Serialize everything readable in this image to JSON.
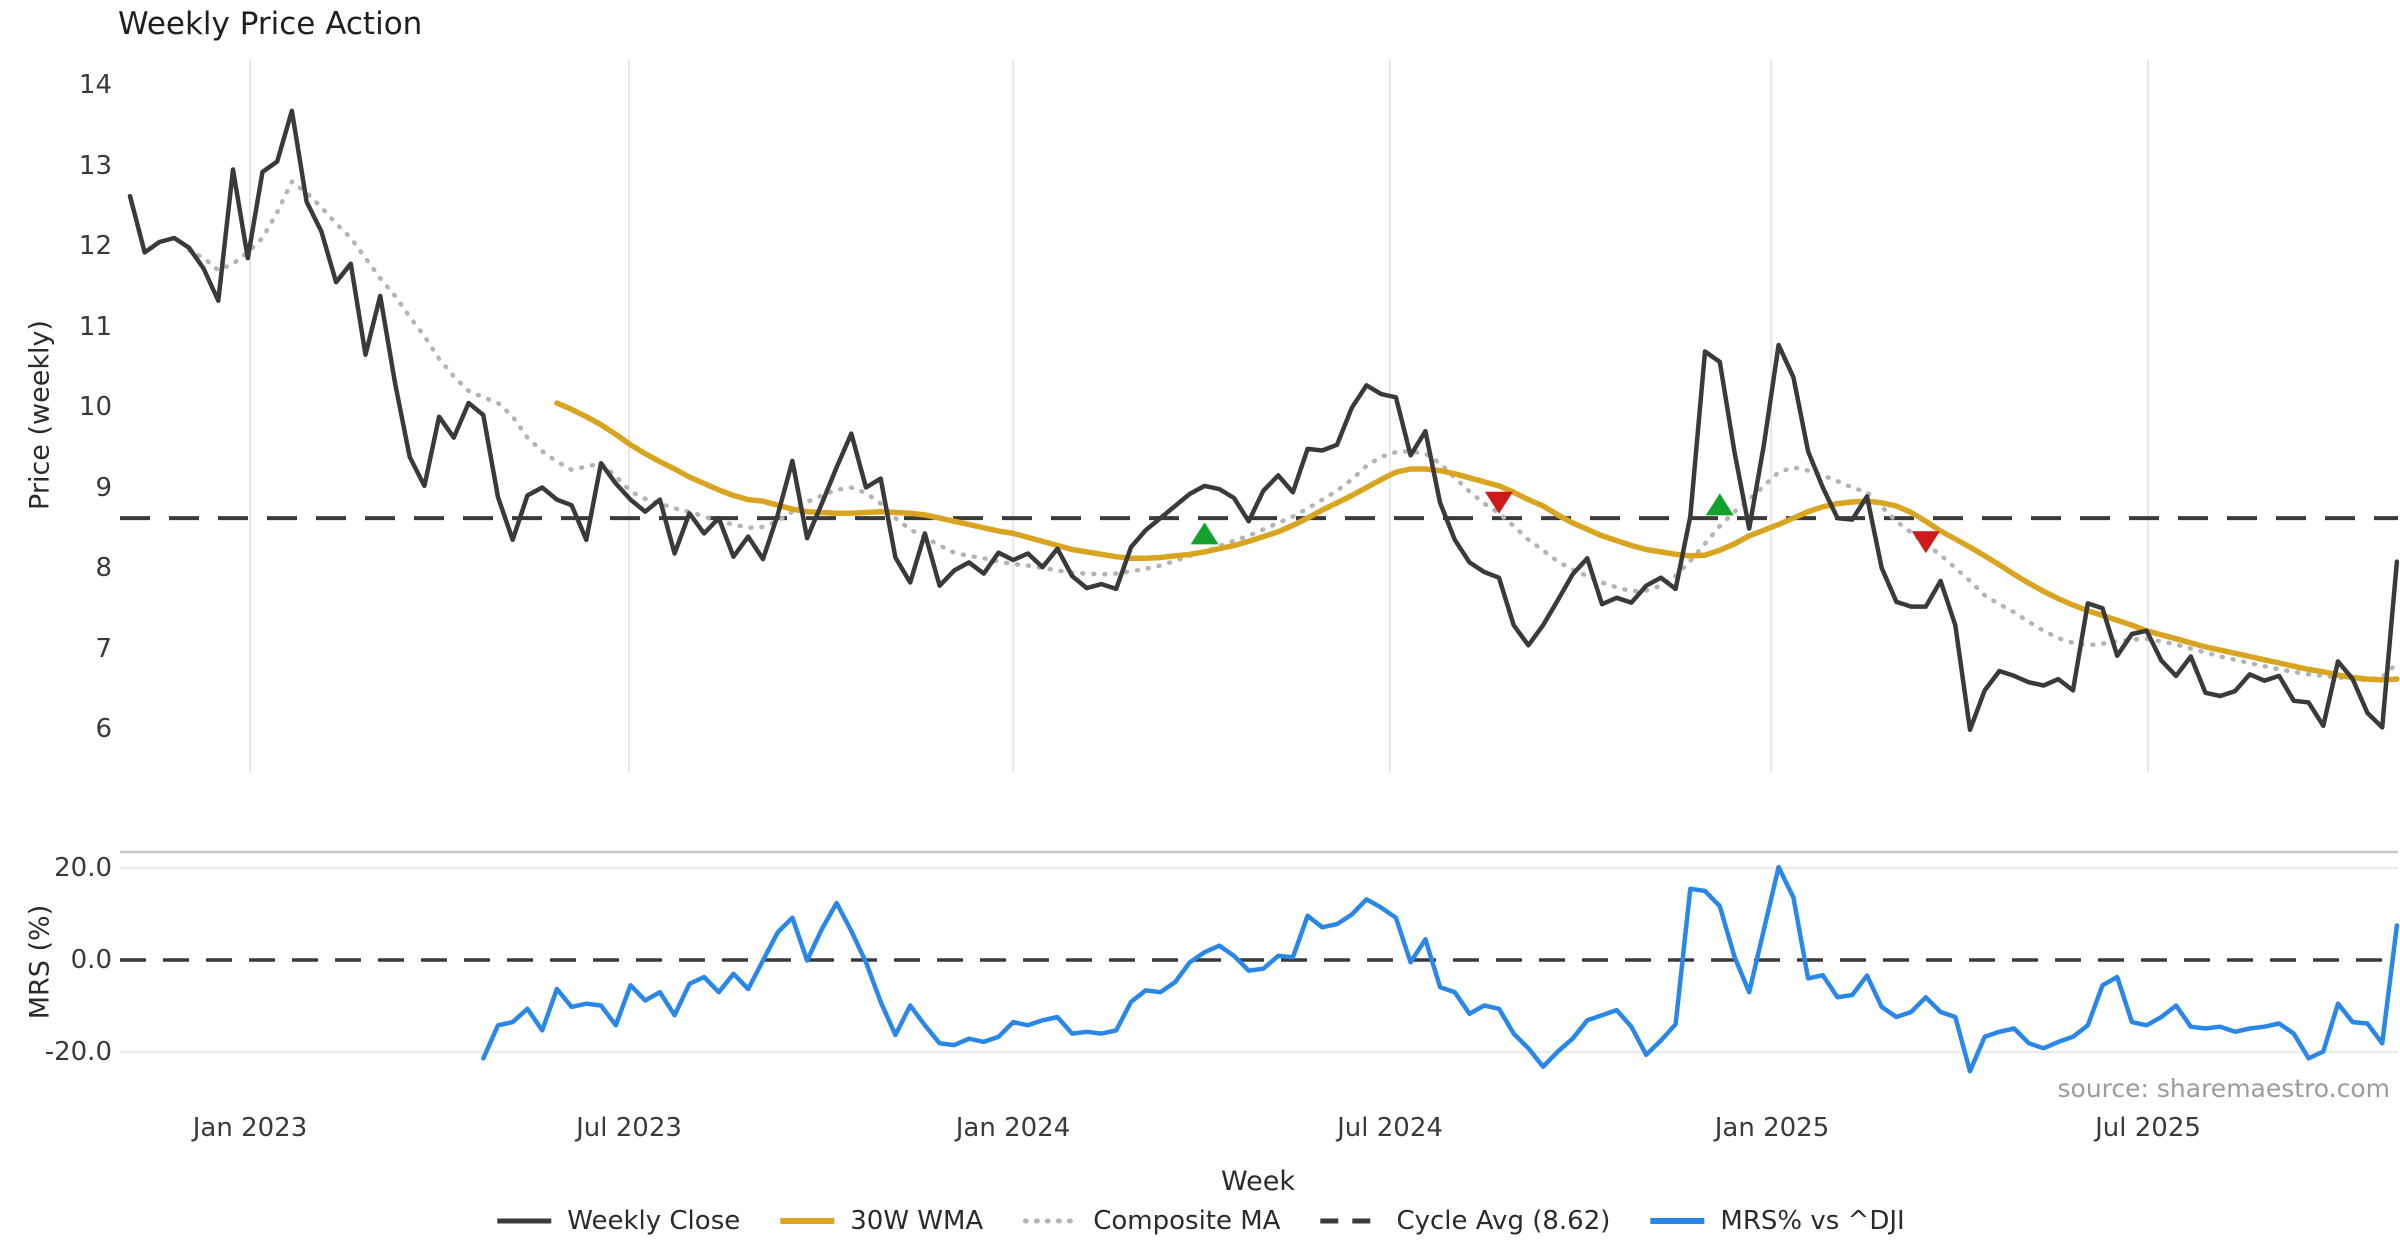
{
  "title": "Weekly Price Action",
  "watermark": "source: sharemaestro.com",
  "colors": {
    "close": "#3a3a3a",
    "wma": "#d9a520",
    "composite": "#b4b4b4",
    "dashed": "#3a3a3a",
    "mrs": "#2a87ea",
    "buy": "#14a02c",
    "sell": "#cd1a1a",
    "grid": "#e8e8e8",
    "panel_border": "#c9c9c9"
  },
  "x_axis": {
    "label": "Week",
    "ticks": [
      {
        "week": 8.15,
        "label": "Jan 2023"
      },
      {
        "week": 33.9,
        "label": "Jul 2023"
      },
      {
        "week": 60.0,
        "label": "Jan 2024"
      },
      {
        "week": 85.6,
        "label": "Jul 2024"
      },
      {
        "week": 111.5,
        "label": "Jan 2025"
      },
      {
        "week": 137.1,
        "label": "Jul 2025"
      }
    ]
  },
  "legend": [
    {
      "label": "Weekly Close",
      "swatch": "solid-dark"
    },
    {
      "label": "30W WMA",
      "swatch": "solid-gold"
    },
    {
      "label": "Composite MA",
      "swatch": "dotted-gray"
    },
    {
      "label": "Cycle Avg (8.62)",
      "swatch": "dashed-dark"
    },
    {
      "label": "MRS% vs ^DJI",
      "swatch": "solid-blue"
    }
  ],
  "chart_data": [
    {
      "panel": "price",
      "type": "line",
      "ylabel": "Price (weekly)",
      "yticks": [
        "14",
        "13",
        "12",
        "11",
        "10",
        "9",
        "8",
        "7",
        "6"
      ],
      "ytick_values": [
        14,
        13,
        12,
        11,
        10,
        9,
        8,
        7,
        6
      ],
      "ylim": [
        5.45,
        14.31
      ],
      "grid": "vertical-only",
      "cycle_avg": 8.62,
      "signals": [
        {
          "type": "buy",
          "week": 73,
          "price": 8.43
        },
        {
          "type": "sell",
          "week": 93,
          "price": 8.81
        },
        {
          "type": "buy",
          "week": 108,
          "price": 8.79
        },
        {
          "type": "sell",
          "week": 122,
          "price": 8.32
        }
      ],
      "series": [
        {
          "name": "Composite MA",
          "key": "composite",
          "start_week": 4,
          "values": [
            11.95,
            11.85,
            11.7,
            11.78,
            11.92,
            12.1,
            12.42,
            12.8,
            12.66,
            12.48,
            12.28,
            12.1,
            11.85,
            11.6,
            11.38,
            11.12,
            10.88,
            10.6,
            10.38,
            10.2,
            10.12,
            10.05,
            9.88,
            9.62,
            9.45,
            9.32,
            9.22,
            9.26,
            9.3,
            9.14,
            8.95,
            8.86,
            8.8,
            8.74,
            8.7,
            8.64,
            8.58,
            8.54,
            8.5,
            8.51,
            8.58,
            8.7,
            8.82,
            8.9,
            8.97,
            9.0,
            8.93,
            8.8,
            8.62,
            8.48,
            8.38,
            8.28,
            8.19,
            8.15,
            8.12,
            8.08,
            8.05,
            8.03,
            8.0,
            7.97,
            7.94,
            7.93,
            7.92,
            7.93,
            7.96,
            7.99,
            8.03,
            8.09,
            8.15,
            8.2,
            8.27,
            8.34,
            8.4,
            8.48,
            8.56,
            8.64,
            8.74,
            8.85,
            8.96,
            9.1,
            9.27,
            9.38,
            9.44,
            9.45,
            9.42,
            9.3,
            9.12,
            8.95,
            8.8,
            8.68,
            8.52,
            8.35,
            8.22,
            8.08,
            7.98,
            7.9,
            7.82,
            7.76,
            7.71,
            7.72,
            7.78,
            7.9,
            8.09,
            8.3,
            8.52,
            8.7,
            8.85,
            9.02,
            9.19,
            9.25,
            9.21,
            9.15,
            9.08,
            9.0,
            8.94,
            8.76,
            8.58,
            8.44,
            8.3,
            8.16,
            8.0,
            7.84,
            7.66,
            7.55,
            7.45,
            7.33,
            7.22,
            7.13,
            7.07,
            7.04,
            7.06,
            7.09,
            7.11,
            7.12,
            7.09,
            7.05,
            7.0,
            6.95,
            6.9,
            6.86,
            6.82,
            6.78,
            6.74,
            6.71,
            6.68,
            6.66,
            6.64,
            6.62,
            6.61,
            6.64,
            6.82
          ]
        },
        {
          "name": "30W WMA",
          "key": "wma",
          "start_week": 29,
          "values": [
            10.05,
            9.97,
            9.88,
            9.78,
            9.66,
            9.53,
            9.42,
            9.32,
            9.23,
            9.13,
            9.05,
            8.97,
            8.9,
            8.85,
            8.83,
            8.78,
            8.73,
            8.7,
            8.69,
            8.68,
            8.68,
            8.69,
            8.7,
            8.69,
            8.68,
            8.66,
            8.62,
            8.58,
            8.54,
            8.5,
            8.46,
            8.43,
            8.38,
            8.33,
            8.28,
            8.23,
            8.2,
            8.17,
            8.14,
            8.12,
            8.12,
            8.13,
            8.15,
            8.17,
            8.2,
            8.24,
            8.28,
            8.33,
            8.39,
            8.45,
            8.53,
            8.62,
            8.72,
            8.81,
            8.9,
            9.0,
            9.1,
            9.19,
            9.23,
            9.23,
            9.21,
            9.17,
            9.12,
            9.07,
            9.02,
            8.94,
            8.85,
            8.77,
            8.66,
            8.56,
            8.48,
            8.4,
            8.34,
            8.28,
            8.23,
            8.2,
            8.17,
            8.15,
            8.16,
            8.22,
            8.3,
            8.4,
            8.47,
            8.54,
            8.62,
            8.7,
            8.76,
            8.8,
            8.82,
            8.83,
            8.81,
            8.77,
            8.69,
            8.58,
            8.46,
            8.36,
            8.26,
            8.15,
            8.04,
            7.92,
            7.81,
            7.71,
            7.62,
            7.54,
            7.47,
            7.41,
            7.35,
            7.29,
            7.22,
            7.17,
            7.12,
            7.07,
            7.02,
            6.98,
            6.94,
            6.9,
            6.86,
            6.82,
            6.78,
            6.74,
            6.71,
            6.67,
            6.64,
            6.62,
            6.61,
            6.62
          ]
        },
        {
          "name": "Weekly Close",
          "key": "close",
          "start_week": 0,
          "values": [
            12.62,
            11.92,
            12.05,
            12.1,
            11.98,
            11.72,
            11.32,
            12.95,
            11.85,
            12.92,
            13.05,
            13.68,
            12.55,
            12.18,
            11.55,
            11.78,
            10.65,
            11.38,
            10.3,
            9.38,
            9.02,
            9.88,
            9.62,
            10.05,
            9.9,
            8.88,
            8.35,
            8.9,
            9.0,
            8.85,
            8.78,
            8.35,
            9.3,
            9.05,
            8.85,
            8.7,
            8.85,
            8.18,
            8.68,
            8.43,
            8.62,
            8.14,
            8.39,
            8.11,
            8.66,
            9.33,
            8.37,
            8.8,
            9.25,
            9.67,
            9.0,
            9.11,
            8.13,
            7.82,
            8.43,
            7.78,
            7.97,
            8.07,
            7.93,
            8.19,
            8.1,
            8.18,
            8.01,
            8.24,
            7.9,
            7.75,
            7.8,
            7.74,
            8.26,
            8.47,
            8.62,
            8.77,
            8.92,
            9.02,
            8.98,
            8.87,
            8.58,
            8.96,
            9.15,
            8.94,
            9.48,
            9.46,
            9.53,
            9.99,
            10.27,
            10.16,
            10.12,
            9.4,
            9.7,
            8.81,
            8.35,
            8.07,
            7.95,
            7.88,
            7.29,
            7.04,
            7.29,
            7.6,
            7.92,
            8.12,
            7.55,
            7.63,
            7.57,
            7.78,
            7.88,
            7.74,
            8.64,
            10.69,
            10.56,
            9.44,
            8.49,
            9.53,
            10.77,
            10.37,
            9.45,
            9.0,
            8.62,
            8.6,
            8.89,
            8.0,
            7.58,
            7.52,
            7.52,
            7.84,
            7.29,
            5.99,
            6.48,
            6.72,
            6.66,
            6.58,
            6.54,
            6.62,
            6.48,
            7.56,
            7.5,
            6.91,
            7.18,
            7.22,
            6.85,
            6.66,
            6.9,
            6.45,
            6.41,
            6.47,
            6.68,
            6.6,
            6.66,
            6.35,
            6.33,
            6.04,
            6.84,
            6.62,
            6.2,
            6.02,
            8.08
          ]
        }
      ]
    },
    {
      "panel": "mrs",
      "type": "line",
      "ylabel": "MRS (%)",
      "yticks": [
        "20.0",
        "0.0",
        "-20.0"
      ],
      "ytick_values": [
        20,
        0,
        -20
      ],
      "ylim": [
        -25.5,
        23.5
      ],
      "zero_line": "dashed",
      "series": [
        {
          "name": "MRS% vs ^DJI",
          "key": "mrs",
          "start_week": 24,
          "values": [
            -21.4,
            -14.2,
            -13.5,
            -10.6,
            -15.3,
            -6.3,
            -10.2,
            -9.5,
            -9.9,
            -14.2,
            -5.5,
            -8.8,
            -7.0,
            -12.0,
            -5.2,
            -3.7,
            -7.0,
            -3.0,
            -6.3,
            -0.1,
            6.0,
            9.2,
            -0.1,
            6.7,
            12.4,
            6.3,
            -0.5,
            -9.1,
            -16.3,
            -9.9,
            -14.2,
            -18.1,
            -18.5,
            -17.1,
            -17.8,
            -16.7,
            -13.5,
            -14.2,
            -13.1,
            -12.4,
            -16.0,
            -15.6,
            -16.0,
            -15.3,
            -9.1,
            -6.6,
            -7.0,
            -4.8,
            -0.5,
            1.7,
            3.1,
            0.9,
            -2.3,
            -1.9,
            0.9,
            0.6,
            9.6,
            7.1,
            7.8,
            9.9,
            13.2,
            11.4,
            9.2,
            -0.5,
            4.5,
            -5.9,
            -7.0,
            -11.7,
            -9.9,
            -10.6,
            -16.0,
            -19.2,
            -23.2,
            -19.9,
            -17.1,
            -13.1,
            -12.0,
            -10.9,
            -14.5,
            -20.6,
            -17.5,
            -14.0,
            15.5,
            15.0,
            11.7,
            0.7,
            -7.0,
            6.6,
            20.2,
            13.6,
            -4.0,
            -3.3,
            -8.1,
            -7.6,
            -3.4,
            -10.2,
            -12.4,
            -11.3,
            -8.1,
            -11.3,
            -12.4,
            -24.2,
            -16.7,
            -15.6,
            -14.9,
            -18.1,
            -19.2,
            -17.8,
            -16.7,
            -14.2,
            -5.5,
            -3.7,
            -13.5,
            -14.2,
            -12.4,
            -9.9,
            -14.5,
            -14.9,
            -14.5,
            -15.6,
            -14.9,
            -14.5,
            -13.8,
            -16.0,
            -21.4,
            -19.9,
            -9.5,
            -13.5,
            -13.8,
            -18.1,
            7.5
          ]
        }
      ]
    }
  ]
}
